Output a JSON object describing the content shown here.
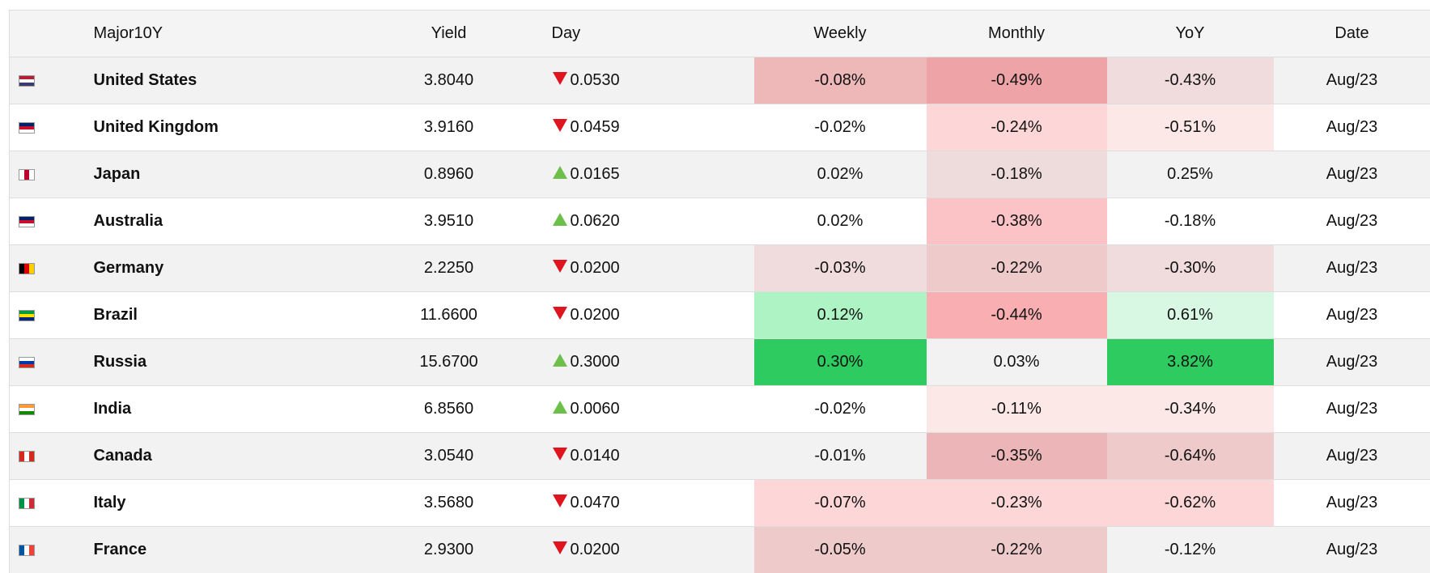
{
  "table": {
    "header": [
      "Major10Y",
      "Yield",
      "Day",
      "Weekly",
      "Monthly",
      "YoY",
      "Date"
    ],
    "rows": [
      {
        "cells": [
          "United States",
          "3.8040",
          "0.0530",
          "-0.08%",
          "-0.49%",
          "-0.43%",
          "Aug/23"
        ],
        "direction": "down",
        "colors": [
          "#eeb8b9",
          "#eea3a6",
          "#f0dcdc"
        ]
      },
      {
        "cells": [
          "United Kingdom",
          "3.9160",
          "0.0459",
          "-0.02%",
          "-0.24%",
          "-0.51%",
          "Aug/23"
        ],
        "direction": "down",
        "colors": [
          null,
          "#fdd7d8",
          "#fde8e8"
        ]
      },
      {
        "cells": [
          "Japan",
          "0.8960",
          "0.0165",
          "0.02%",
          "-0.18%",
          "0.25%",
          "Aug/23"
        ],
        "direction": "up",
        "colors": [
          null,
          "#eedcdc",
          null
        ]
      },
      {
        "cells": [
          "Australia",
          "3.9510",
          "0.0620",
          "0.02%",
          "-0.38%",
          "-0.18%",
          "Aug/23"
        ],
        "direction": "up",
        "colors": [
          null,
          "#fbc3c6",
          null
        ]
      },
      {
        "cells": [
          "Germany",
          "2.2250",
          "0.0200",
          "-0.03%",
          "-0.22%",
          "-0.30%",
          "Aug/23"
        ],
        "direction": "down",
        "colors": [
          "#f0dcdc",
          "#efcaca",
          "#f0dcdc"
        ]
      },
      {
        "cells": [
          "Brazil",
          "11.6600",
          "0.0200",
          "0.12%",
          "-0.44%",
          "0.61%",
          "Aug/23"
        ],
        "direction": "down",
        "colors": [
          "#aef3c4",
          "#f9aeb2",
          "#d9f8e3"
        ]
      },
      {
        "cells": [
          "Russia",
          "15.6700",
          "0.3000",
          "0.30%",
          "0.03%",
          "3.82%",
          "Aug/23"
        ],
        "direction": "up",
        "colors": [
          "#2ecc60",
          null,
          "#2ecc60"
        ]
      },
      {
        "cells": [
          "India",
          "6.8560",
          "0.0060",
          "-0.02%",
          "-0.11%",
          "-0.34%",
          "Aug/23"
        ],
        "direction": "up",
        "colors": [
          null,
          "#fde8e8",
          "#fde8e8"
        ]
      },
      {
        "cells": [
          "Canada",
          "3.0540",
          "0.0140",
          "-0.01%",
          "-0.35%",
          "-0.64%",
          "Aug/23"
        ],
        "direction": "down",
        "colors": [
          null,
          "#ecb6b8",
          "#efcaca"
        ]
      },
      {
        "cells": [
          "Italy",
          "3.5680",
          "0.0470",
          "-0.07%",
          "-0.23%",
          "-0.62%",
          "Aug/23"
        ],
        "direction": "down",
        "colors": [
          "#fdd7d8",
          "#fdd7d8",
          "#fdd7d8"
        ]
      },
      {
        "cells": [
          "France",
          "2.9300",
          "0.0200",
          "-0.05%",
          "-0.22%",
          "-0.12%",
          "Aug/23"
        ],
        "direction": "down",
        "colors": [
          "#efcaca",
          "#efcaca",
          null
        ]
      }
    ]
  }
}
